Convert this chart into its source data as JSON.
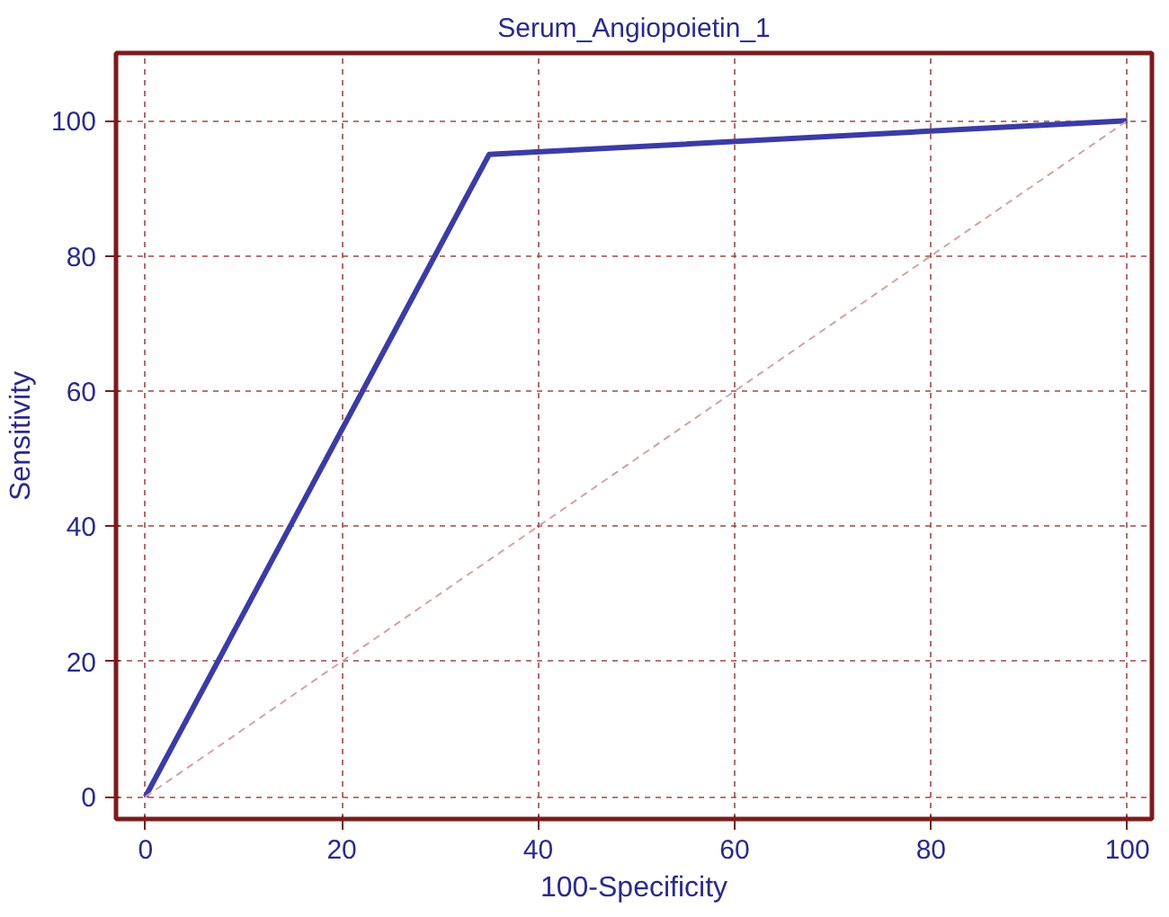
{
  "chart_data": {
    "type": "line",
    "title": "Serum_Angiopoietin_1",
    "xlabel": "100-Specificity",
    "ylabel": "Sensitivity",
    "xlim": [
      -3,
      102.5
    ],
    "ylim": [
      -3.3,
      110
    ],
    "xticks": [
      0,
      20,
      40,
      60,
      80,
      100
    ],
    "yticks": [
      0,
      20,
      40,
      60,
      80,
      100
    ],
    "grid": true,
    "series": [
      {
        "color": "#3b3ba6",
        "x": [
          0,
          35,
          100
        ],
        "values": [
          0,
          95,
          100
        ],
        "line_style": "solid"
      },
      {
        "color": "#d9a0a0",
        "x": [
          0,
          100
        ],
        "values": [
          0,
          100
        ],
        "line_style": "dashed"
      }
    ]
  }
}
